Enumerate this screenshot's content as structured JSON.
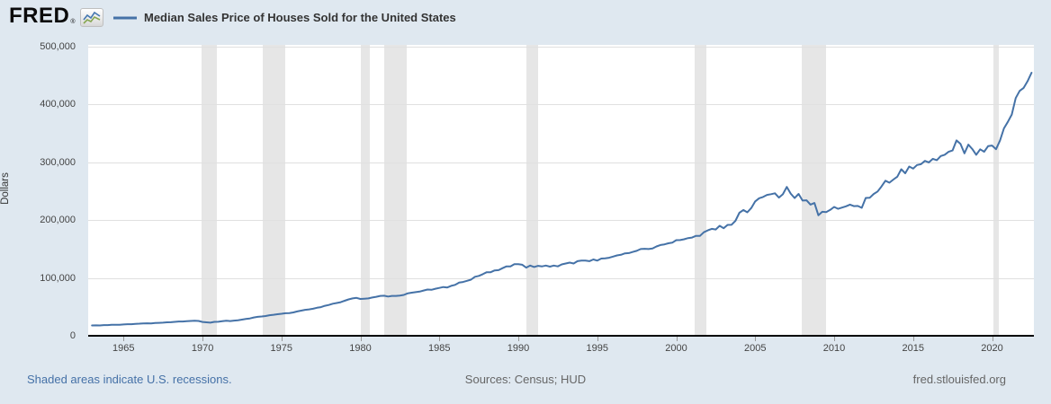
{
  "header": {
    "logo_text": "FRED",
    "logo_registered": "®",
    "icon": {
      "name": "line-chart-icon",
      "blue": "#4577b0",
      "green": "#87a752"
    }
  },
  "legend": {
    "label": "Median Sales Price of Houses Sold for the United States"
  },
  "footer": {
    "recession_note": "Shaded areas indicate U.S. recessions.",
    "sources": "Sources: Census; HUD",
    "site": "fred.stlouisfed.org",
    "link_color": "#4571a7",
    "text_color": "#666666"
  },
  "chart_data": {
    "type": "line",
    "title": "Median Sales Price of Houses Sold for the United States",
    "ylabel": "Dollars",
    "xlabel": "",
    "unit": "USD",
    "frequency": "quarterly",
    "start": "1963-01-01",
    "end": "2022-07-01",
    "values": [
      17800,
      18000,
      17900,
      18500,
      18500,
      18900,
      18900,
      19000,
      19600,
      20000,
      20000,
      20600,
      21000,
      21400,
      21600,
      21400,
      22000,
      22400,
      22700,
      23300,
      23400,
      24100,
      24700,
      24700,
      25200,
      25600,
      25900,
      25600,
      23900,
      23300,
      22700,
      24000,
      24300,
      25200,
      25900,
      25500,
      26200,
      26900,
      27900,
      29000,
      29900,
      31600,
      32700,
      33400,
      34100,
      35500,
      36300,
      37300,
      38100,
      38900,
      39300,
      40300,
      42100,
      43500,
      44800,
      45700,
      46700,
      48500,
      49600,
      51800,
      53200,
      55400,
      56700,
      58100,
      60600,
      62900,
      64600,
      65500,
      63700,
      64200,
      64600,
      66100,
      67400,
      68900,
      69300,
      67900,
      68900,
      69000,
      69600,
      70700,
      73500,
      74500,
      75500,
      76400,
      78200,
      79900,
      79500,
      81300,
      82800,
      84300,
      83600,
      86300,
      88000,
      92000,
      93000,
      95000,
      97100,
      102000,
      103500,
      106500,
      110000,
      110000,
      113000,
      113500,
      117000,
      120000,
      120000,
      123900,
      123900,
      122900,
      117900,
      121500,
      119000,
      121000,
      120000,
      121500,
      119500,
      121500,
      120000,
      123500,
      125000,
      126500,
      125000,
      129000,
      130000,
      130000,
      129000,
      132000,
      130000,
      133500,
      134000,
      134900,
      137000,
      139000,
      140000,
      142500,
      143000,
      145000,
      146900,
      150000,
      150500,
      150000,
      151000,
      154500,
      157000,
      158000,
      160000,
      161000,
      165300,
      165500,
      167000,
      169000,
      169800,
      172900,
      172600,
      179000,
      182300,
      185000,
      183900,
      190200,
      186000,
      191800,
      191900,
      198800,
      212700,
      217600,
      213500,
      221000,
      232500,
      237900,
      240100,
      243600,
      244900,
      246500,
      239000,
      244700,
      257400,
      245900,
      238200,
      245300,
      233900,
      234300,
      226800,
      229600,
      208400,
      214500,
      213900,
      217700,
      222900,
      219500,
      221800,
      223900,
      226900,
      224300,
      224500,
      221200,
      238400,
      238700,
      245200,
      249600,
      258400,
      268100,
      264800,
      270200,
      275200,
      288000,
      281000,
      292700,
      289200,
      295300,
      296700,
      302500,
      299800,
      306000,
      303800,
      310900,
      313100,
      318200,
      320500,
      337900,
      331800,
      315600,
      330600,
      322800,
      313000,
      322500,
      318400,
      327900,
      329000,
      322600,
      337500,
      358700,
      369800,
      382600,
      411200,
      423600,
      428700,
      440300,
      454900
    ],
    "x_domain": [
      1962.76,
      2022.65
    ],
    "ylim": [
      0,
      500000
    ],
    "x_ticks": [
      1965,
      1970,
      1975,
      1980,
      1985,
      1990,
      1995,
      2000,
      2005,
      2010,
      2015,
      2020
    ],
    "y_ticks": [
      0,
      100000,
      200000,
      300000,
      400000,
      500000
    ],
    "recessions": [
      [
        1969.917,
        1970.917
      ],
      [
        1973.833,
        1975.25
      ],
      [
        1980.0,
        1980.583
      ],
      [
        1981.5,
        1982.917
      ],
      [
        1990.5,
        1991.25
      ],
      [
        2001.167,
        2001.917
      ],
      [
        2007.917,
        2009.5
      ],
      [
        2020.083,
        2020.417
      ]
    ],
    "line_color": "#4572a7",
    "grid_color": "#e0e0e0",
    "band_color": "#e6e6e6",
    "axis_color": "#000000",
    "tick_text_color": "#444444",
    "background_color": "#dfe8f0",
    "plot_background_color": "#ffffff",
    "grid": "horizontal",
    "legend_position": "top"
  }
}
